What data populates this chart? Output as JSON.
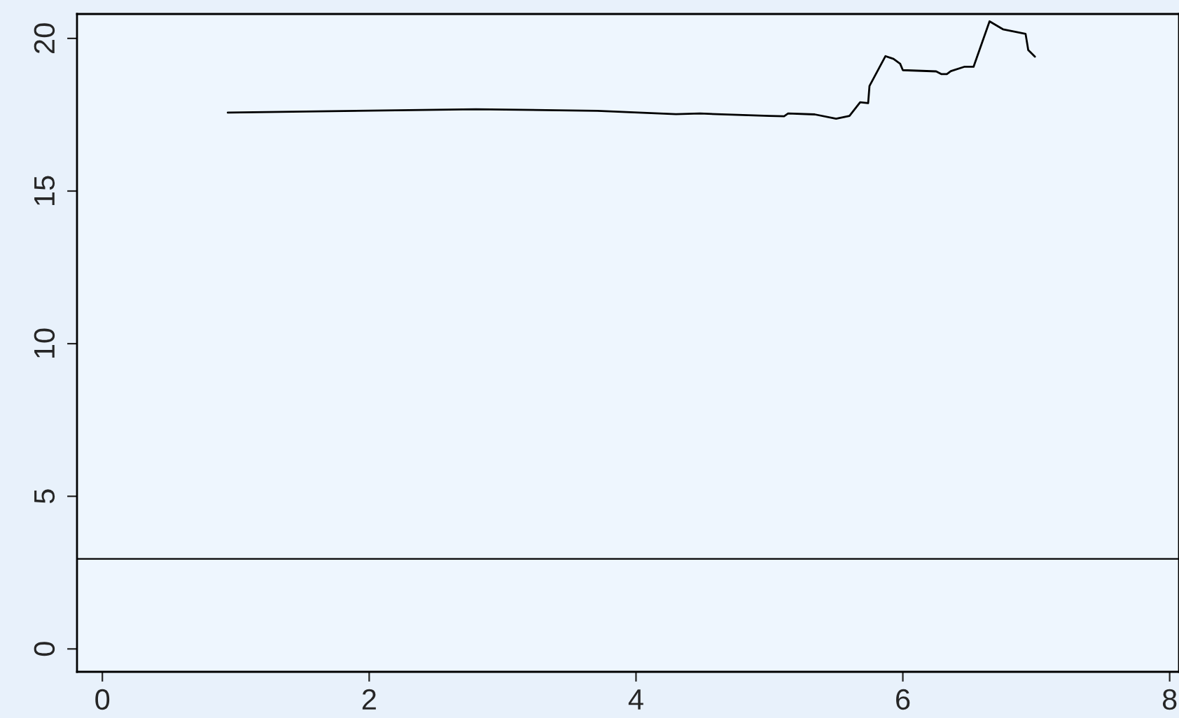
{
  "chart_data": {
    "type": "line",
    "x": [
      0.94,
      2.8,
      3.71,
      4.3,
      4.48,
      5.0,
      5.11,
      5.14,
      5.34,
      5.5,
      5.6,
      5.68,
      5.74,
      5.75,
      5.87,
      5.93,
      5.98,
      6.0,
      6.25,
      6.29,
      6.33,
      6.36,
      6.46,
      6.53,
      6.65,
      6.75,
      6.92,
      6.94,
      6.99
    ],
    "series": [
      {
        "color": "#000000",
        "values": [
          17.57,
          17.68,
          17.63,
          17.52,
          17.54,
          17.46,
          17.45,
          17.54,
          17.51,
          17.37,
          17.46,
          17.91,
          17.88,
          18.44,
          19.42,
          19.33,
          19.17,
          18.96,
          18.92,
          18.83,
          18.83,
          18.93,
          19.07,
          19.07,
          20.56,
          20.3,
          20.15,
          19.62,
          19.4
        ]
      }
    ],
    "xlim": [
      -0.19,
      8.07
    ],
    "ylim": [
      -0.75,
      20.8
    ],
    "xticks": [
      0,
      2,
      4,
      6,
      8
    ],
    "yticks": [
      0,
      5,
      10,
      15,
      20
    ],
    "ref_lines": [
      {
        "axis": "y",
        "value": 2.95,
        "color": "#000000"
      }
    ],
    "grid": false,
    "legend": false
  }
}
